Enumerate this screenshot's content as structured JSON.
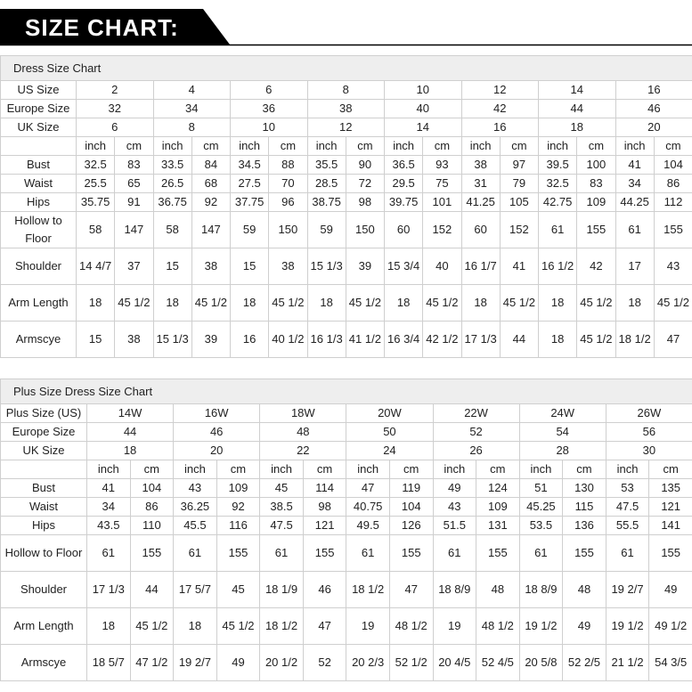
{
  "header": {
    "title": "SIZE CHART:"
  },
  "tables": [
    {
      "title": "Dress Size Chart",
      "header_rows": [
        {
          "label": "US Size",
          "cells": [
            "2",
            "4",
            "6",
            "8",
            "10",
            "12",
            "14",
            "16"
          ]
        },
        {
          "label": "Europe Size",
          "cells": [
            "32",
            "34",
            "36",
            "38",
            "40",
            "42",
            "44",
            "46"
          ]
        },
        {
          "label": "UK Size",
          "cells": [
            "6",
            "8",
            "10",
            "12",
            "14",
            "16",
            "18",
            "20"
          ]
        }
      ],
      "units": [
        "inch",
        "cm"
      ],
      "rows": [
        {
          "label": "Bust",
          "cells": [
            "32.5",
            "83",
            "33.5",
            "84",
            "34.5",
            "88",
            "35.5",
            "90",
            "36.5",
            "93",
            "38",
            "97",
            "39.5",
            "100",
            "41",
            "104"
          ]
        },
        {
          "label": "Waist",
          "cells": [
            "25.5",
            "65",
            "26.5",
            "68",
            "27.5",
            "70",
            "28.5",
            "72",
            "29.5",
            "75",
            "31",
            "79",
            "32.5",
            "83",
            "34",
            "86"
          ]
        },
        {
          "label": "Hips",
          "cells": [
            "35.75",
            "91",
            "36.75",
            "92",
            "37.75",
            "96",
            "38.75",
            "98",
            "39.75",
            "101",
            "41.25",
            "105",
            "42.75",
            "109",
            "44.25",
            "112"
          ]
        },
        {
          "label": "Hollow to Floor",
          "cells": [
            "58",
            "147",
            "58",
            "147",
            "59",
            "150",
            "59",
            "150",
            "60",
            "152",
            "60",
            "152",
            "61",
            "155",
            "61",
            "155"
          ]
        },
        {
          "label": "Shoulder",
          "cells": [
            "14 4/7",
            "37",
            "15",
            "38",
            "15",
            "38",
            "15 1/3",
            "39",
            "15 3/4",
            "40",
            "16 1/7",
            "41",
            "16 1/2",
            "42",
            "17",
            "43"
          ]
        },
        {
          "label": "Arm Length",
          "cells": [
            "18",
            "45 1/2",
            "18",
            "45 1/2",
            "18",
            "45 1/2",
            "18",
            "45 1/2",
            "18",
            "45 1/2",
            "18",
            "45 1/2",
            "18",
            "45 1/2",
            "18",
            "45 1/2"
          ]
        },
        {
          "label": "Armscye",
          "cells": [
            "15",
            "38",
            "15 1/3",
            "39",
            "16",
            "40 1/2",
            "16 1/3",
            "41 1/2",
            "16 3/4",
            "42 1/2",
            "17 1/3",
            "44",
            "18",
            "45 1/2",
            "18 1/2",
            "47"
          ]
        }
      ]
    },
    {
      "title": "Plus Size Dress Size Chart",
      "header_rows": [
        {
          "label": "Plus Size (US)",
          "cells": [
            "14W",
            "16W",
            "18W",
            "20W",
            "22W",
            "24W",
            "26W"
          ]
        },
        {
          "label": "Europe Size",
          "cells": [
            "44",
            "46",
            "48",
            "50",
            "52",
            "54",
            "56"
          ]
        },
        {
          "label": "UK Size",
          "cells": [
            "18",
            "20",
            "22",
            "24",
            "26",
            "28",
            "30"
          ]
        }
      ],
      "units": [
        "inch",
        "cm"
      ],
      "rows": [
        {
          "label": "Bust",
          "cells": [
            "41",
            "104",
            "43",
            "109",
            "45",
            "114",
            "47",
            "119",
            "49",
            "124",
            "51",
            "130",
            "53",
            "135"
          ]
        },
        {
          "label": "Waist",
          "cells": [
            "34",
            "86",
            "36.25",
            "92",
            "38.5",
            "98",
            "40.75",
            "104",
            "43",
            "109",
            "45.25",
            "115",
            "47.5",
            "121"
          ]
        },
        {
          "label": "Hips",
          "cells": [
            "43.5",
            "110",
            "45.5",
            "116",
            "47.5",
            "121",
            "49.5",
            "126",
            "51.5",
            "131",
            "53.5",
            "136",
            "55.5",
            "141"
          ]
        },
        {
          "label": "Hollow to Floor",
          "cells": [
            "61",
            "155",
            "61",
            "155",
            "61",
            "155",
            "61",
            "155",
            "61",
            "155",
            "61",
            "155",
            "61",
            "155"
          ]
        },
        {
          "label": "Shoulder",
          "cells": [
            "17 1/3",
            "44",
            "17 5/7",
            "45",
            "18 1/9",
            "46",
            "18 1/2",
            "47",
            "18 8/9",
            "48",
            "18 8/9",
            "48",
            "19 2/7",
            "49"
          ]
        },
        {
          "label": "Arm Length",
          "cells": [
            "18",
            "45 1/2",
            "18",
            "45 1/2",
            "18 1/2",
            "47",
            "19",
            "48 1/2",
            "19",
            "48 1/2",
            "19 1/2",
            "49",
            "19 1/2",
            "49 1/2"
          ]
        },
        {
          "label": "Armscye",
          "cells": [
            "18 5/7",
            "47 1/2",
            "19 2/7",
            "49",
            "20 1/2",
            "52",
            "20 2/3",
            "52 1/2",
            "20 4/5",
            "52 4/5",
            "20 5/8",
            "52 2/5",
            "21 1/2",
            "54 3/5"
          ]
        }
      ]
    }
  ]
}
